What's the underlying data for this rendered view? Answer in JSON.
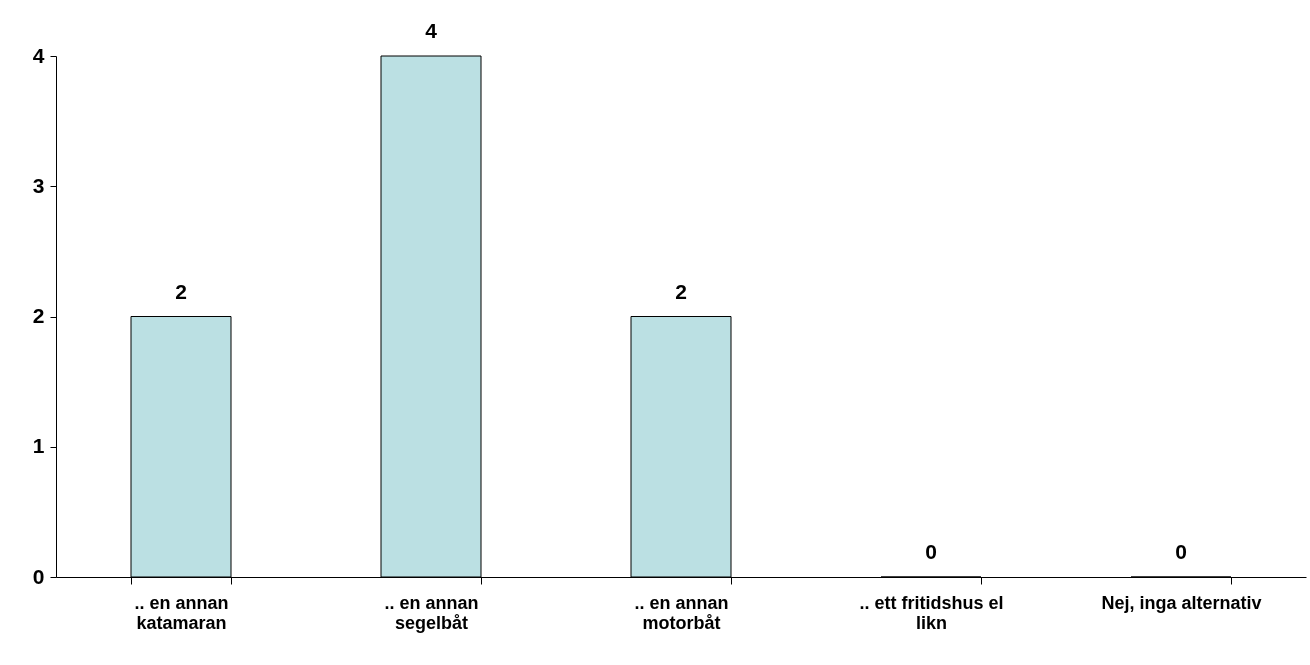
{
  "chart_data": {
    "type": "bar",
    "categories": [
      ".. en annan\nkatamaran",
      ".. en annan\nsegelbåt",
      ".. en annan\nmotorbåt",
      ".. ett fritidshus el\nlikn",
      "Nej, inga alternativ"
    ],
    "values": [
      2,
      4,
      2,
      0,
      0
    ],
    "color": "#bbe0e3",
    "ylim": [
      0,
      4
    ],
    "yticks": [
      0,
      1,
      2,
      3,
      4
    ],
    "grid": false,
    "data_labels": true
  }
}
